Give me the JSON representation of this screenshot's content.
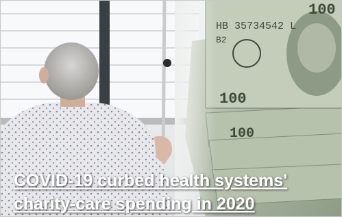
{
  "headline": {
    "lines": [
      "COVID-19 curbed health systems'",
      "charity-care spending in 2020"
    ]
  },
  "bill": {
    "serial": "HB 35734542 L",
    "series": "B2",
    "denomination": "100"
  }
}
